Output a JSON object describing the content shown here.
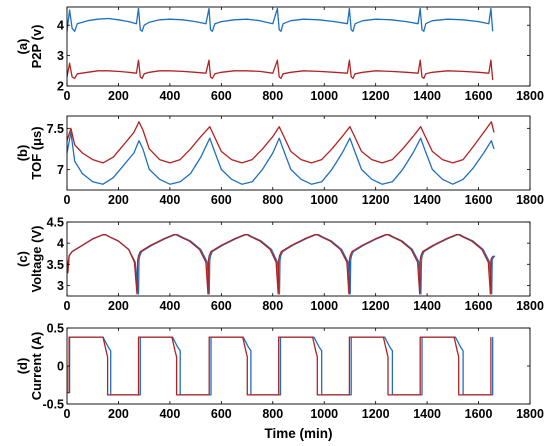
{
  "chart_data": [
    {
      "panel": "(a)",
      "type": "line",
      "ylabel": "P2P (v)",
      "xlabel": "",
      "xlim": [
        0,
        1800
      ],
      "ylim": [
        2,
        4.6
      ],
      "xticks": [
        0,
        200,
        400,
        600,
        800,
        1000,
        1200,
        1400,
        1600,
        1800
      ],
      "yticks": [
        2,
        3,
        4
      ],
      "grid": false,
      "series": [
        {
          "color": "#1f6fbf",
          "pattern": "charge_cycle",
          "cycle_starts": [
            0,
            280,
            555,
            825,
            1100,
            1375
          ],
          "x_end": 1655,
          "x": [
            0,
            10,
            20,
            30,
            40,
            80,
            120,
            160,
            200,
            240,
            270,
            278,
            285,
            292,
            300,
            320,
            360,
            400,
            450,
            500,
            540,
            552,
            558,
            565,
            575,
            600,
            650,
            700,
            750,
            800,
            818,
            825,
            832,
            840,
            870,
            920,
            980,
            1040,
            1090,
            1098,
            1105,
            1112,
            1120,
            1150,
            1200,
            1260,
            1320,
            1365,
            1373,
            1380,
            1387,
            1395,
            1420,
            1480,
            1540,
            1600,
            1640,
            1648,
            1655
          ],
          "y": [
            3.8,
            4.5,
            3.9,
            3.8,
            4.05,
            4.15,
            4.2,
            4.22,
            4.18,
            4.12,
            4.05,
            4.55,
            3.85,
            3.8,
            4.0,
            4.1,
            4.18,
            4.2,
            4.18,
            4.12,
            4.05,
            4.55,
            3.85,
            3.8,
            4.05,
            4.12,
            4.18,
            4.2,
            4.15,
            4.05,
            4.55,
            3.85,
            3.8,
            4.05,
            4.15,
            4.2,
            4.18,
            4.12,
            4.05,
            4.55,
            3.85,
            3.8,
            4.05,
            4.15,
            4.2,
            4.18,
            4.12,
            4.05,
            4.55,
            3.85,
            3.8,
            4.05,
            4.15,
            4.2,
            4.18,
            4.12,
            4.05,
            4.55,
            3.8
          ]
        },
        {
          "color": "#b22222",
          "x": [
            0,
            10,
            20,
            30,
            40,
            80,
            120,
            160,
            200,
            240,
            270,
            278,
            285,
            292,
            300,
            320,
            360,
            400,
            450,
            500,
            540,
            552,
            558,
            565,
            575,
            600,
            650,
            700,
            750,
            800,
            818,
            825,
            832,
            840,
            870,
            920,
            980,
            1040,
            1090,
            1098,
            1105,
            1112,
            1120,
            1150,
            1200,
            1260,
            1320,
            1365,
            1373,
            1380,
            1387,
            1395,
            1420,
            1480,
            1540,
            1600,
            1640,
            1648,
            1655
          ],
          "y": [
            2.3,
            2.75,
            2.3,
            2.25,
            2.4,
            2.45,
            2.5,
            2.5,
            2.48,
            2.45,
            2.42,
            2.85,
            2.3,
            2.25,
            2.4,
            2.45,
            2.5,
            2.5,
            2.48,
            2.45,
            2.42,
            2.85,
            2.3,
            2.25,
            2.4,
            2.45,
            2.5,
            2.5,
            2.48,
            2.42,
            2.85,
            2.3,
            2.25,
            2.4,
            2.45,
            2.5,
            2.48,
            2.45,
            2.42,
            2.85,
            2.3,
            2.25,
            2.4,
            2.45,
            2.5,
            2.48,
            2.45,
            2.42,
            2.85,
            2.3,
            2.25,
            2.4,
            2.45,
            2.5,
            2.48,
            2.45,
            2.42,
            2.85,
            2.2
          ]
        }
      ]
    },
    {
      "panel": "(b)",
      "type": "line",
      "ylabel": "TOF (μs)",
      "xlabel": "",
      "xlim": [
        0,
        1800
      ],
      "ylim": [
        6.75,
        7.65
      ],
      "xticks": [
        0,
        200,
        400,
        600,
        800,
        1000,
        1200,
        1400,
        1600,
        1800
      ],
      "yticks": [
        7,
        7.5
      ],
      "yticklabels": [
        "7",
        "7.5"
      ],
      "grid": false,
      "series": [
        {
          "color": "#1f6fbf",
          "x": [
            0,
            15,
            30,
            60,
            100,
            140,
            180,
            220,
            260,
            280,
            295,
            320,
            360,
            400,
            440,
            480,
            520,
            555,
            570,
            600,
            640,
            680,
            720,
            760,
            800,
            825,
            840,
            870,
            910,
            950,
            990,
            1030,
            1070,
            1100,
            1115,
            1145,
            1185,
            1225,
            1265,
            1305,
            1345,
            1375,
            1390,
            1420,
            1460,
            1500,
            1540,
            1580,
            1620,
            1650,
            1660
          ],
          "y": [
            7.2,
            7.45,
            7.1,
            6.95,
            6.85,
            6.82,
            6.9,
            7.05,
            7.2,
            7.35,
            7.25,
            7.0,
            6.88,
            6.82,
            6.85,
            6.95,
            7.15,
            7.38,
            7.25,
            7.0,
            6.88,
            6.82,
            6.85,
            7.0,
            7.2,
            7.38,
            7.25,
            7.0,
            6.88,
            6.82,
            6.85,
            7.0,
            7.2,
            7.38,
            7.25,
            7.0,
            6.88,
            6.82,
            6.85,
            7.0,
            7.2,
            7.38,
            7.25,
            7.0,
            6.88,
            6.82,
            6.88,
            7.02,
            7.2,
            7.35,
            7.25
          ]
        },
        {
          "color": "#b22222",
          "x": [
            0,
            15,
            30,
            60,
            100,
            140,
            180,
            220,
            260,
            280,
            295,
            320,
            360,
            400,
            440,
            480,
            520,
            555,
            570,
            600,
            640,
            680,
            720,
            760,
            800,
            825,
            840,
            870,
            910,
            950,
            990,
            1030,
            1070,
            1100,
            1115,
            1145,
            1185,
            1225,
            1265,
            1305,
            1345,
            1375,
            1390,
            1420,
            1460,
            1500,
            1540,
            1580,
            1620,
            1650,
            1660
          ],
          "y": [
            7.35,
            7.5,
            7.3,
            7.2,
            7.12,
            7.08,
            7.15,
            7.3,
            7.45,
            7.58,
            7.48,
            7.25,
            7.12,
            7.08,
            7.12,
            7.25,
            7.4,
            7.52,
            7.42,
            7.22,
            7.12,
            7.08,
            7.12,
            7.25,
            7.4,
            7.52,
            7.42,
            7.22,
            7.12,
            7.08,
            7.12,
            7.25,
            7.4,
            7.52,
            7.42,
            7.22,
            7.12,
            7.08,
            7.12,
            7.25,
            7.4,
            7.52,
            7.42,
            7.22,
            7.12,
            7.08,
            7.12,
            7.28,
            7.45,
            7.58,
            7.45
          ]
        }
      ]
    },
    {
      "panel": "(c)",
      "type": "line",
      "ylabel": "Voltage (V)",
      "xlabel": "",
      "xlim": [
        0,
        1800
      ],
      "ylim": [
        2.75,
        4.5
      ],
      "xticks": [
        0,
        200,
        400,
        600,
        800,
        1000,
        1200,
        1400,
        1600,
        1800
      ],
      "yticks": [
        3,
        3.5,
        4,
        4.5
      ],
      "yticklabels": [
        "3",
        "3.5",
        "4",
        "4.5"
      ],
      "grid": false,
      "series": [
        {
          "color": "#1f6fbf",
          "x": [
            0,
            3,
            8,
            20,
            60,
            100,
            140,
            150,
            165,
            200,
            240,
            265,
            278,
            280,
            283,
            290,
            330,
            380,
            420,
            430,
            445,
            480,
            520,
            545,
            553,
            555,
            558,
            565,
            605,
            655,
            695,
            705,
            720,
            755,
            795,
            818,
            826,
            828,
            831,
            838,
            878,
            928,
            968,
            978,
            993,
            1028,
            1068,
            1093,
            1101,
            1103,
            1106,
            1113,
            1153,
            1203,
            1243,
            1253,
            1268,
            1303,
            1343,
            1368,
            1376,
            1378,
            1381,
            1388,
            1428,
            1478,
            1518,
            1528,
            1543,
            1578,
            1618,
            1643,
            1651,
            1653,
            1656,
            1663
          ],
          "y": [
            3.6,
            3.3,
            3.7,
            3.8,
            3.95,
            4.1,
            4.2,
            4.2,
            4.15,
            4.05,
            3.85,
            3.55,
            2.8,
            3.6,
            3.7,
            3.8,
            3.95,
            4.1,
            4.2,
            4.2,
            4.15,
            4.05,
            3.85,
            3.55,
            2.8,
            3.6,
            3.7,
            3.8,
            3.95,
            4.1,
            4.2,
            4.2,
            4.15,
            4.05,
            3.85,
            3.55,
            2.8,
            3.6,
            3.7,
            3.8,
            3.95,
            4.1,
            4.2,
            4.2,
            4.15,
            4.05,
            3.85,
            3.55,
            2.8,
            3.6,
            3.7,
            3.8,
            3.95,
            4.1,
            4.2,
            4.2,
            4.15,
            4.05,
            3.85,
            3.55,
            2.8,
            3.6,
            3.7,
            3.8,
            3.95,
            4.1,
            4.2,
            4.2,
            4.15,
            4.05,
            3.85,
            3.55,
            2.8,
            3.6,
            3.65,
            3.7
          ]
        },
        {
          "color": "#b22222",
          "x": [
            0,
            3,
            8,
            20,
            60,
            100,
            140,
            150,
            165,
            200,
            240,
            262,
            272,
            275,
            278,
            285,
            325,
            375,
            415,
            425,
            440,
            475,
            515,
            540,
            548,
            550,
            553,
            560,
            600,
            650,
            690,
            700,
            715,
            750,
            790,
            813,
            821,
            823,
            826,
            833,
            873,
            923,
            963,
            973,
            988,
            1023,
            1063,
            1088,
            1096,
            1098,
            1101,
            1108,
            1148,
            1198,
            1238,
            1248,
            1263,
            1298,
            1338,
            1363,
            1371,
            1373,
            1376,
            1383,
            1423,
            1473,
            1513,
            1523,
            1538,
            1573,
            1613,
            1638,
            1646,
            1648,
            1651,
            1658
          ],
          "y": [
            3.6,
            3.3,
            3.7,
            3.8,
            3.95,
            4.1,
            4.2,
            4.2,
            4.15,
            4.05,
            3.85,
            3.55,
            2.8,
            3.6,
            3.7,
            3.8,
            3.95,
            4.1,
            4.2,
            4.2,
            4.15,
            4.05,
            3.85,
            3.55,
            2.8,
            3.6,
            3.7,
            3.8,
            3.95,
            4.1,
            4.2,
            4.2,
            4.15,
            4.05,
            3.85,
            3.55,
            2.8,
            3.6,
            3.7,
            3.8,
            3.95,
            4.1,
            4.2,
            4.2,
            4.15,
            4.05,
            3.85,
            3.55,
            2.8,
            3.6,
            3.7,
            3.8,
            3.95,
            4.1,
            4.2,
            4.2,
            4.15,
            4.05,
            3.85,
            3.55,
            2.8,
            3.6,
            3.7,
            3.8,
            3.95,
            4.1,
            4.2,
            4.2,
            4.15,
            4.05,
            3.85,
            3.55,
            2.8,
            3.6,
            3.65,
            3.7
          ]
        }
      ]
    },
    {
      "panel": "(d)",
      "type": "line",
      "ylabel": "Current (A)",
      "xlabel": "Time (min)",
      "xlim": [
        0,
        1800
      ],
      "ylim": [
        -0.5,
        0.5
      ],
      "xticks": [
        0,
        200,
        400,
        600,
        800,
        1000,
        1200,
        1400,
        1600,
        1800
      ],
      "yticks": [
        -0.5,
        0,
        0.5
      ],
      "yticklabels": [
        "-0.5",
        "0",
        "0.5"
      ],
      "grid": false,
      "series": [
        {
          "color": "#1f6fbf",
          "x": [
            0,
            0,
            5,
            10,
            10,
            140,
            160,
            170,
            170,
            285,
            285,
            410,
            430,
            440,
            440,
            560,
            560,
            685,
            705,
            715,
            715,
            830,
            830,
            960,
            980,
            990,
            990,
            1105,
            1105,
            1235,
            1255,
            1265,
            1265,
            1380,
            1380,
            1510,
            1530,
            1540,
            1540,
            1655,
            1655
          ],
          "y": [
            0,
            -0.35,
            -0.35,
            -0.35,
            0.38,
            0.38,
            0.25,
            0.2,
            -0.38,
            -0.38,
            0.38,
            0.38,
            0.25,
            0.2,
            -0.38,
            -0.38,
            0.38,
            0.38,
            0.25,
            0.2,
            -0.38,
            -0.38,
            0.38,
            0.38,
            0.25,
            0.2,
            -0.38,
            -0.38,
            0.38,
            0.38,
            0.25,
            0.2,
            -0.38,
            -0.38,
            0.38,
            0.38,
            0.25,
            0.2,
            -0.38,
            -0.38,
            0.38
          ]
        },
        {
          "color": "#b22222",
          "x": [
            0,
            0,
            5,
            8,
            8,
            140,
            152,
            158,
            158,
            278,
            278,
            408,
            420,
            426,
            426,
            553,
            553,
            683,
            695,
            701,
            701,
            823,
            823,
            955,
            967,
            973,
            973,
            1098,
            1098,
            1230,
            1242,
            1248,
            1248,
            1373,
            1373,
            1505,
            1517,
            1523,
            1523,
            1648,
            1648
          ],
          "y": [
            0,
            -0.35,
            -0.35,
            -0.35,
            0.38,
            0.38,
            0.2,
            0.12,
            -0.38,
            -0.38,
            0.38,
            0.38,
            0.2,
            0.12,
            -0.38,
            -0.38,
            0.38,
            0.38,
            0.2,
            0.12,
            -0.38,
            -0.38,
            0.38,
            0.38,
            0.2,
            0.12,
            -0.38,
            -0.38,
            0.38,
            0.38,
            0.2,
            0.12,
            -0.38,
            -0.38,
            0.38,
            0.38,
            0.2,
            0.12,
            -0.38,
            -0.38,
            0.38
          ]
        }
      ]
    }
  ]
}
